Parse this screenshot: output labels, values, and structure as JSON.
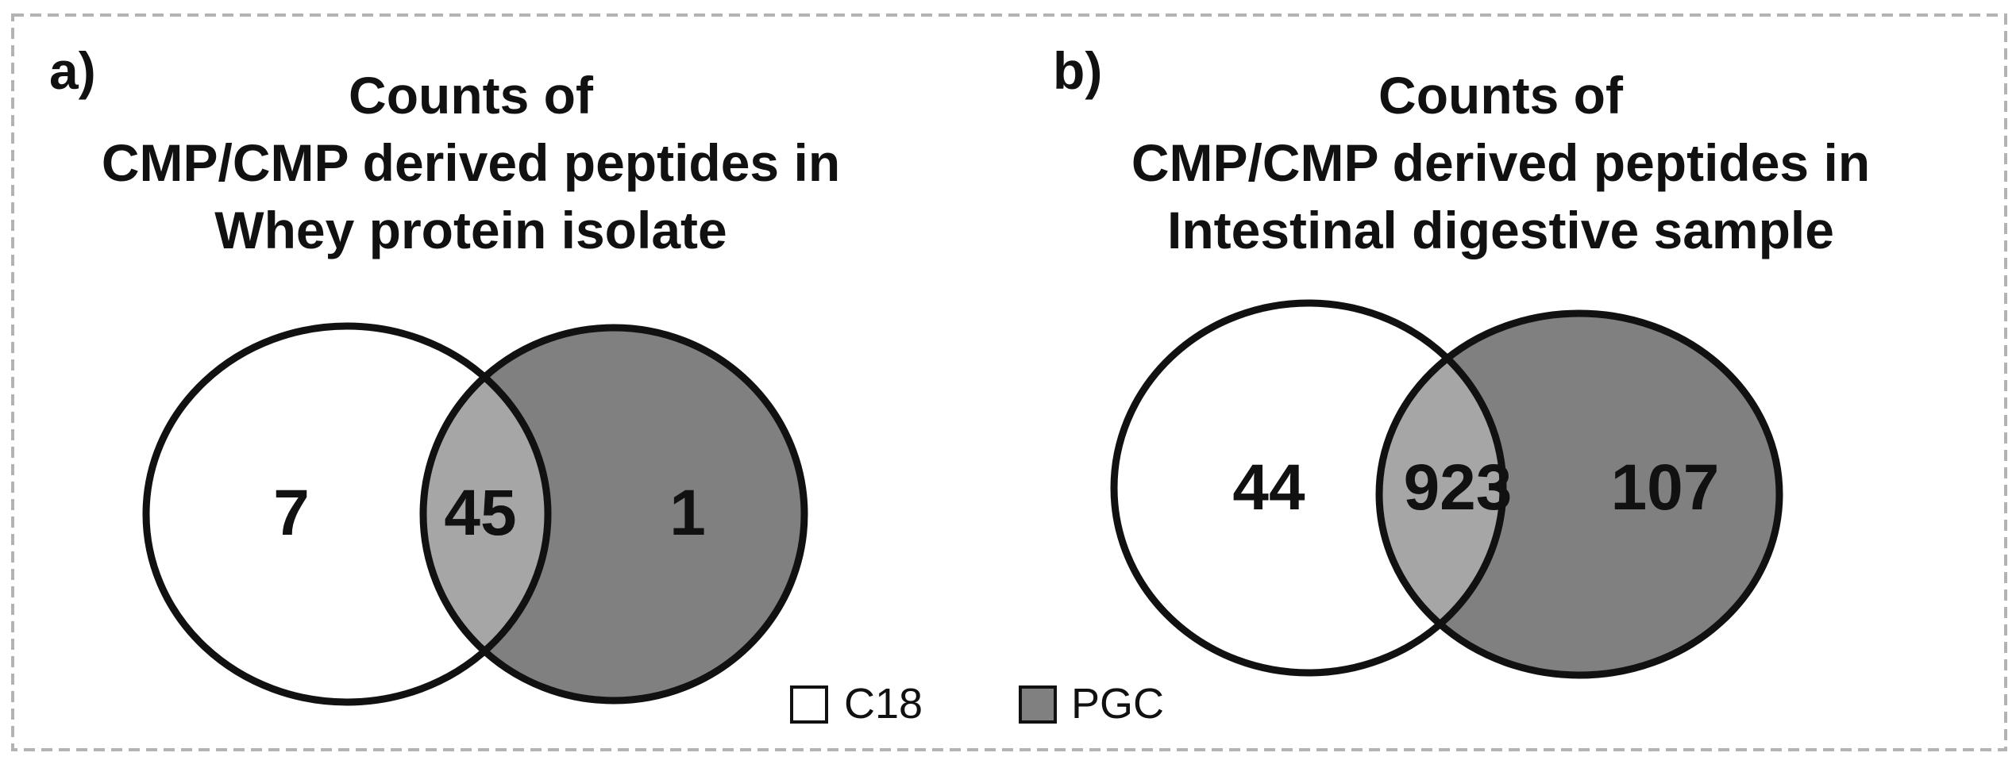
{
  "colors": {
    "c18_fill": "#ffffff",
    "pgc_fill": "#808080",
    "overlap_fill": "#a6a6a6",
    "outline": "#111111",
    "frame_dash": "#b3b3b3"
  },
  "panels": [
    {
      "label": "a)",
      "title_lines": [
        "Counts of",
        "CMP/CMP derived peptides in",
        "Whey protein isolate"
      ],
      "counts": {
        "c18_only": "7",
        "overlap": "45",
        "pgc_only": "1"
      }
    },
    {
      "label": "b)",
      "title_lines": [
        "Counts of",
        "CMP/CMP derived peptides in",
        "Intestinal digestive sample"
      ],
      "counts": {
        "c18_only": "44",
        "overlap": "923",
        "pgc_only": "107"
      }
    }
  ],
  "legend": {
    "items": [
      {
        "label": "C18",
        "swatch": "white-square-icon"
      },
      {
        "label": "PGC",
        "swatch": "gray-square-icon"
      }
    ]
  }
}
